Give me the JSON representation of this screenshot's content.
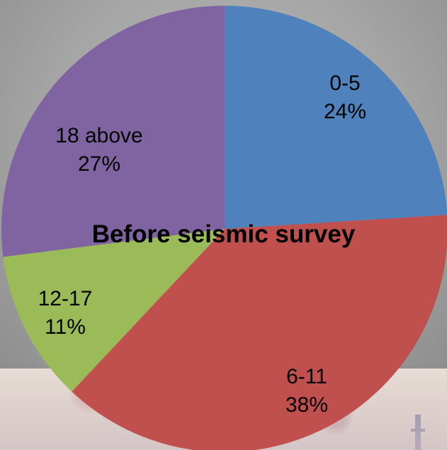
{
  "chart_data": {
    "type": "pie",
    "title": "Before seismic survey",
    "start": "12 o'clock",
    "direction": "clockwise",
    "slices": [
      {
        "label": "0-5",
        "value": 24,
        "percent_label": "24%",
        "color": "#4f81bd"
      },
      {
        "label": "6-11",
        "value": 38,
        "percent_label": "38%",
        "color": "#c0504d"
      },
      {
        "label": "12-17",
        "value": 11,
        "percent_label": "11%",
        "color": "#9bbb59"
      },
      {
        "label": "18 above",
        "value": 27,
        "percent_label": "27%",
        "color": "#8064a2"
      }
    ]
  }
}
